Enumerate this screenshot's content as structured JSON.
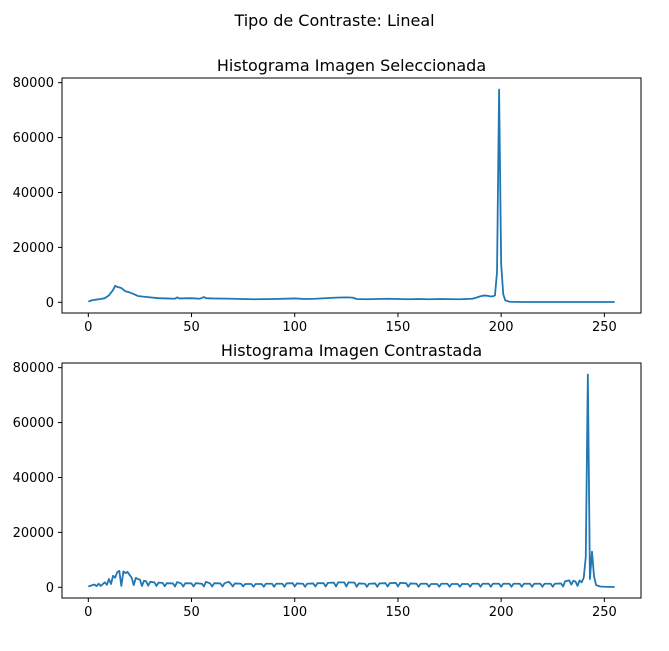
{
  "figure": {
    "suptitle": "Tipo de Contraste: Lineal",
    "line_color": "#1f77b4"
  },
  "chart_data": [
    {
      "type": "line",
      "title": "Histograma Imagen Seleccionada",
      "xlabel": "",
      "ylabel": "",
      "xlim": [
        -12.75,
        267.75
      ],
      "ylim": [
        -3900,
        81700
      ],
      "xticks": [
        0,
        50,
        100,
        150,
        200,
        250
      ],
      "yticks": [
        0,
        20000,
        40000,
        60000,
        80000
      ],
      "grid": false,
      "series": [
        {
          "points": [
            [
              0,
              300
            ],
            [
              2,
              800
            ],
            [
              4,
              1000
            ],
            [
              6,
              1200
            ],
            [
              8,
              1500
            ],
            [
              10,
              2500
            ],
            [
              12,
              4500
            ],
            [
              13,
              6000
            ],
            [
              14,
              5600
            ],
            [
              16,
              5200
            ],
            [
              18,
              4000
            ],
            [
              20,
              3600
            ],
            [
              22,
              3000
            ],
            [
              24,
              2300
            ],
            [
              26,
              2100
            ],
            [
              30,
              1800
            ],
            [
              34,
              1500
            ],
            [
              38,
              1400
            ],
            [
              42,
              1300
            ],
            [
              43,
              1800
            ],
            [
              44,
              1400
            ],
            [
              50,
              1500
            ],
            [
              54,
              1300
            ],
            [
              56,
              1900
            ],
            [
              57,
              1500
            ],
            [
              60,
              1400
            ],
            [
              70,
              1300
            ],
            [
              80,
              1100
            ],
            [
              90,
              1200
            ],
            [
              100,
              1400
            ],
            [
              105,
              1200
            ],
            [
              110,
              1300
            ],
            [
              120,
              1700
            ],
            [
              125,
              1800
            ],
            [
              128,
              1700
            ],
            [
              130,
              1200
            ],
            [
              135,
              1100
            ],
            [
              140,
              1200
            ],
            [
              145,
              1300
            ],
            [
              150,
              1200
            ],
            [
              155,
              1100
            ],
            [
              160,
              1200
            ],
            [
              165,
              1100
            ],
            [
              170,
              1200
            ],
            [
              180,
              1100
            ],
            [
              186,
              1300
            ],
            [
              188,
              1700
            ],
            [
              190,
              2200
            ],
            [
              192,
              2500
            ],
            [
              194,
              2300
            ],
            [
              195,
              2100
            ],
            [
              196,
              2200
            ],
            [
              197,
              2500
            ],
            [
              198,
              11000
            ],
            [
              199,
              77500
            ],
            [
              200,
              14000
            ],
            [
              201,
              3000
            ],
            [
              202,
              700
            ],
            [
              204,
              200
            ],
            [
              210,
              100
            ],
            [
              220,
              100
            ],
            [
              230,
              100
            ],
            [
              240,
              100
            ],
            [
              255,
              100
            ]
          ]
        }
      ]
    },
    {
      "type": "line",
      "title": "Histograma Imagen Contrastada",
      "xlabel": "",
      "ylabel": "",
      "xlim": [
        -12.75,
        267.75
      ],
      "ylim": [
        -3900,
        81700
      ],
      "xticks": [
        0,
        50,
        100,
        150,
        200,
        250
      ],
      "yticks": [
        0,
        20000,
        40000,
        60000,
        80000
      ],
      "grid": false,
      "series": [
        {
          "points": [
            [
              0,
              300
            ],
            [
              2,
              800
            ],
            [
              3,
              1000
            ],
            [
              4,
              400
            ],
            [
              5,
              1300
            ],
            [
              6,
              500
            ],
            [
              8,
              1800
            ],
            [
              9,
              900
            ],
            [
              10,
              3000
            ],
            [
              11,
              1200
            ],
            [
              12,
              4200
            ],
            [
              13,
              3500
            ],
            [
              14,
              5500
            ],
            [
              15,
              6000
            ],
            [
              16,
              500
            ],
            [
              17,
              5800
            ],
            [
              18,
              5200
            ],
            [
              19,
              5600
            ],
            [
              20,
              4500
            ],
            [
              21,
              3500
            ],
            [
              22,
              800
            ],
            [
              23,
              3400
            ],
            [
              24,
              3000
            ],
            [
              25,
              2800
            ],
            [
              26,
              500
            ],
            [
              27,
              2400
            ],
            [
              28,
              2200
            ],
            [
              29,
              600
            ],
            [
              30,
              2000
            ],
            [
              32,
              1800
            ],
            [
              33,
              500
            ],
            [
              34,
              1700
            ],
            [
              36,
              1600
            ],
            [
              37,
              400
            ],
            [
              38,
              1500
            ],
            [
              41,
              1400
            ],
            [
              42,
              300
            ],
            [
              43,
              1900
            ],
            [
              45,
              1400
            ],
            [
              46,
              300
            ],
            [
              47,
              1500
            ],
            [
              50,
              1400
            ],
            [
              51,
              300
            ],
            [
              52,
              1500
            ],
            [
              55,
              1300
            ],
            [
              56,
              300
            ],
            [
              57,
              2000
            ],
            [
              59,
              1400
            ],
            [
              60,
              300
            ],
            [
              61,
              1500
            ],
            [
              64,
              1400
            ],
            [
              65,
              300
            ],
            [
              66,
              1500
            ],
            [
              68,
              2000
            ],
            [
              69,
              1300
            ],
            [
              70,
              300
            ],
            [
              71,
              1400
            ],
            [
              74,
              1300
            ],
            [
              75,
              300
            ],
            [
              76,
              1200
            ],
            [
              79,
              1200
            ],
            [
              80,
              200
            ],
            [
              81,
              1200
            ],
            [
              84,
              1200
            ],
            [
              85,
              200
            ],
            [
              86,
              1300
            ],
            [
              89,
              1300
            ],
            [
              90,
              200
            ],
            [
              91,
              1300
            ],
            [
              94,
              1300
            ],
            [
              95,
              200
            ],
            [
              96,
              1400
            ],
            [
              99,
              1500
            ],
            [
              100,
              300
            ],
            [
              101,
              1400
            ],
            [
              104,
              1300
            ],
            [
              105,
              200
            ],
            [
              106,
              1300
            ],
            [
              109,
              1400
            ],
            [
              110,
              300
            ],
            [
              111,
              1500
            ],
            [
              114,
              1500
            ],
            [
              115,
              300
            ],
            [
              116,
              1600
            ],
            [
              119,
              1700
            ],
            [
              120,
              300
            ],
            [
              121,
              1800
            ],
            [
              124,
              1800
            ],
            [
              125,
              300
            ],
            [
              126,
              1800
            ],
            [
              129,
              1700
            ],
            [
              130,
              200
            ],
            [
              131,
              1400
            ],
            [
              134,
              1300
            ],
            [
              135,
              200
            ],
            [
              136,
              1300
            ],
            [
              139,
              1400
            ],
            [
              140,
              200
            ],
            [
              141,
              1400
            ],
            [
              144,
              1500
            ],
            [
              145,
              300
            ],
            [
              146,
              1500
            ],
            [
              149,
              1600
            ],
            [
              150,
              300
            ],
            [
              151,
              1600
            ],
            [
              154,
              1500
            ],
            [
              155,
              200
            ],
            [
              156,
              1400
            ],
            [
              159,
              1300
            ],
            [
              160,
              200
            ],
            [
              161,
              1300
            ],
            [
              164,
              1300
            ],
            [
              165,
              200
            ],
            [
              166,
              1200
            ],
            [
              169,
              1200
            ],
            [
              170,
              200
            ],
            [
              171,
              1300
            ],
            [
              174,
              1300
            ],
            [
              175,
              200
            ],
            [
              176,
              1200
            ],
            [
              179,
              1200
            ],
            [
              180,
              200
            ],
            [
              181,
              1200
            ],
            [
              184,
              1200
            ],
            [
              185,
              200
            ],
            [
              186,
              1300
            ],
            [
              189,
              1300
            ],
            [
              190,
              200
            ],
            [
              191,
              1300
            ],
            [
              194,
              1300
            ],
            [
              195,
              200
            ],
            [
              196,
              1300
            ],
            [
              199,
              1300
            ],
            [
              200,
              200
            ],
            [
              201,
              1300
            ],
            [
              204,
              1300
            ],
            [
              205,
              200
            ],
            [
              206,
              1300
            ],
            [
              209,
              1300
            ],
            [
              210,
              200
            ],
            [
              211,
              1300
            ],
            [
              214,
              1300
            ],
            [
              215,
              200
            ],
            [
              216,
              1300
            ],
            [
              219,
              1300
            ],
            [
              220,
              200
            ],
            [
              221,
              1300
            ],
            [
              224,
              1300
            ],
            [
              225,
              200
            ],
            [
              226,
              1300
            ],
            [
              229,
              1400
            ],
            [
              230,
              300
            ],
            [
              231,
              2200
            ],
            [
              233,
              2500
            ],
            [
              234,
              1000
            ],
            [
              235,
              2400
            ],
            [
              236,
              2100
            ],
            [
              237,
              500
            ],
            [
              238,
              2500
            ],
            [
              239,
              1800
            ],
            [
              240,
              3500
            ],
            [
              241,
              11000
            ],
            [
              242,
              77500
            ],
            [
              243,
              3000
            ],
            [
              244,
              13000
            ],
            [
              245,
              4000
            ],
            [
              246,
              800
            ],
            [
              248,
              300
            ],
            [
              250,
              200
            ],
            [
              255,
              100
            ]
          ]
        }
      ]
    }
  ]
}
